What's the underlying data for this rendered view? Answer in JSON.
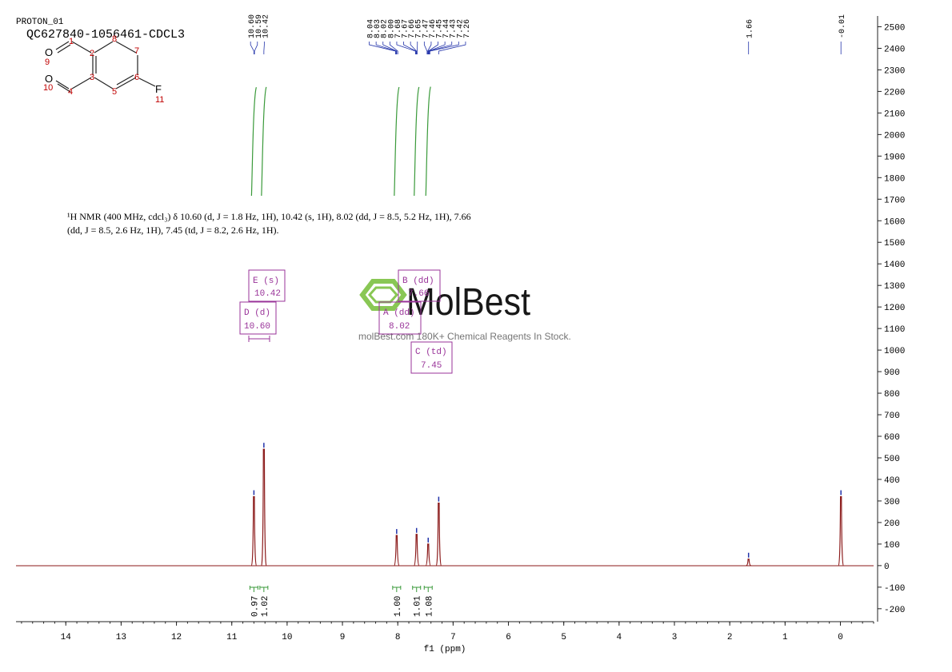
{
  "chart_data": {
    "type": "nmr",
    "title": "PROTON_01",
    "subtitle": "QC627840-1056461-CDCL3",
    "xlabel": "f1 (ppm)",
    "xlim": [
      14.9,
      -0.6
    ],
    "xticks": [
      14,
      13,
      12,
      11,
      10,
      9,
      8,
      7,
      6,
      5,
      4,
      3,
      2,
      1,
      0
    ],
    "ylim": [
      -260,
      2550
    ],
    "yticks": [
      -200,
      -100,
      0,
      100,
      200,
      300,
      400,
      500,
      600,
      700,
      800,
      900,
      1000,
      1100,
      1200,
      1300,
      1400,
      1500,
      1600,
      1700,
      1800,
      1900,
      2000,
      2100,
      2200,
      2300,
      2400,
      2500
    ],
    "color": "#8b1a1a",
    "peaks": {
      "x": [
        10.6,
        10.42,
        8.02,
        7.66,
        7.45,
        7.26,
        1.66,
        -0.01
      ],
      "values": [
        320,
        540,
        140,
        145,
        100,
        290,
        30,
        320
      ]
    },
    "peak_label_groups": [
      [
        {
          "value": 10.6,
          "label": "10.60"
        },
        {
          "value": 10.59,
          "label": "10.59"
        },
        {
          "value": 10.42,
          "label": "10.42"
        }
      ],
      [
        {
          "value": 8.04,
          "label": "8.04"
        },
        {
          "value": 8.03,
          "label": "8.03"
        },
        {
          "value": 8.02,
          "label": "8.02"
        },
        {
          "value": 8.0,
          "label": "8.00"
        },
        {
          "value": 7.68,
          "label": "7.68"
        },
        {
          "value": 7.67,
          "label": "7.67"
        },
        {
          "value": 7.66,
          "label": "7.66"
        },
        {
          "value": 7.65,
          "label": "7.65"
        },
        {
          "value": 7.47,
          "label": "7.47"
        },
        {
          "value": 7.46,
          "label": "7.46"
        },
        {
          "value": 7.45,
          "label": "7.45"
        },
        {
          "value": 7.44,
          "label": "7.44"
        },
        {
          "value": 7.43,
          "label": "7.43"
        },
        {
          "value": 7.42,
          "label": "7.42"
        },
        {
          "value": 7.26,
          "label": "7.26"
        }
      ],
      [
        {
          "value": 1.66,
          "label": "1.66"
        }
      ],
      [
        {
          "value": -0.01,
          "label": "-0.01"
        }
      ]
    ],
    "integrals": [
      {
        "x": 10.6,
        "value": 0.97,
        "label": "0.97"
      },
      {
        "x": 10.42,
        "value": 1.02,
        "label": "1.02"
      },
      {
        "x": 8.02,
        "value": 1.0,
        "label": "1.00"
      },
      {
        "x": 7.66,
        "value": 1.01,
        "label": "1.01"
      },
      {
        "x": 7.45,
        "value": 1.08,
        "label": "1.08"
      }
    ],
    "multiplets": [
      {
        "name": "E (s)",
        "shift": "10.42"
      },
      {
        "name": "D (d)",
        "shift": "10.60"
      },
      {
        "name": "B (dd)",
        "shift": "7.66"
      },
      {
        "name": "A (dd)",
        "shift": "8.02"
      },
      {
        "name": "C (td)",
        "shift": "7.45"
      }
    ],
    "description": [
      "¹H NMR (400 MHz, cdcl₃) δ 10.60 (d, J = 1.8 Hz, 1H), 10.42 (s, 1H), 8.02 (dd, J = 8.5, 5.2 Hz, 1H), 7.66",
      "(dd, J = 8.5, 2.6 Hz, 1H), 7.45 (td, J = 8.2, 2.6 Hz, 1H)."
    ],
    "watermark": {
      "brand": "MolBest",
      "tagline": "molBest.com 180K+ Chemical Reagents In Stock."
    },
    "structure": {
      "atoms": [
        "O",
        "O",
        "F",
        "1",
        "2",
        "3",
        "4",
        "5",
        "6",
        "7",
        "8",
        "9",
        "10",
        "11"
      ]
    }
  }
}
